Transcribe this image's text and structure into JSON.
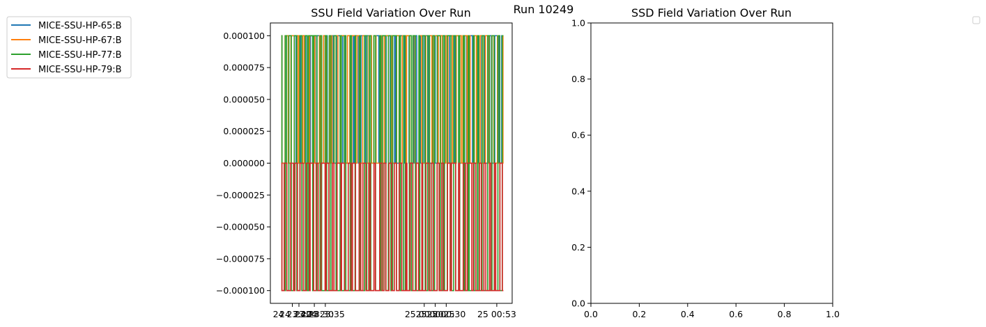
{
  "suptitle": "Run 10249",
  "legend_left": {
    "entries": [
      {
        "label": "MICE-SSU-HP-65:B",
        "color": "#1f77b4"
      },
      {
        "label": "MICE-SSU-HP-67:B",
        "color": "#ff7f0e"
      },
      {
        "label": "MICE-SSU-HP-77:B",
        "color": "#2ca02c"
      },
      {
        "label": "MICE-SSU-HP-79:B",
        "color": "#d62728"
      }
    ]
  },
  "legend_right": {
    "entries": []
  },
  "chart_data": [
    {
      "type": "line",
      "title": "SSU Field Variation Over Run",
      "xlabel": "",
      "ylabel": "",
      "ylim": [
        -0.00011,
        0.00011
      ],
      "yticks": [
        "0.000100",
        "0.000075",
        "0.000050",
        "0.000025",
        "0.000000",
        "−0.000025",
        "−0.000050",
        "−0.000075",
        "−0.000100"
      ],
      "ytick_values": [
        0.0001,
        7.5e-05,
        5e-05,
        2.5e-05,
        0,
        -2.5e-05,
        -5e-05,
        -7.5e-05,
        -0.0001
      ],
      "xticks": [
        "24 23:20",
        "24 23:23",
        "24 23:30",
        "24 23:35",
        "25 00:20",
        "25 00:25",
        "25 00:30",
        "25 00:53"
      ],
      "xtick_minutes": [
        1400,
        1403,
        1410,
        1415,
        1460,
        1465,
        1470,
        1493
      ],
      "xlim_minutes": [
        1390,
        1500
      ],
      "series": [
        {
          "name": "MICE-SSU-HP-65:B",
          "color": "#1f77b4",
          "x_minutes": [
            1395,
            1496
          ],
          "levels": [
            0.0001,
            0
          ],
          "steps": 70,
          "seed": 11
        },
        {
          "name": "MICE-SSU-HP-67:B",
          "color": "#ff7f0e",
          "x_minutes": [
            1395,
            1496
          ],
          "levels": [
            0.0001,
            0
          ],
          "steps": 80,
          "seed": 23
        },
        {
          "name": "MICE-SSU-HP-77:B",
          "color": "#2ca02c",
          "x_minutes": [
            1395,
            1496
          ],
          "levels": [
            0.0001,
            -0.0001
          ],
          "steps": 90,
          "seed": 37
        },
        {
          "name": "MICE-SSU-HP-79:B",
          "color": "#d62728",
          "x_minutes": [
            1395,
            1496
          ],
          "levels": [
            0,
            -0.0001
          ],
          "steps": 85,
          "seed": 53
        }
      ]
    },
    {
      "type": "line",
      "title": "SSD Field Variation Over Run",
      "xlabel": "",
      "ylabel": "",
      "xlim": [
        0,
        1
      ],
      "ylim": [
        0,
        1
      ],
      "xticks": [
        "0.0",
        "0.2",
        "0.4",
        "0.6",
        "0.8",
        "1.0"
      ],
      "xtick_values": [
        0,
        0.2,
        0.4,
        0.6,
        0.8,
        1
      ],
      "yticks": [
        "0.0",
        "0.2",
        "0.4",
        "0.6",
        "0.8",
        "1.0"
      ],
      "ytick_values": [
        0,
        0.2,
        0.4,
        0.6,
        0.8,
        1
      ],
      "series": []
    }
  ]
}
